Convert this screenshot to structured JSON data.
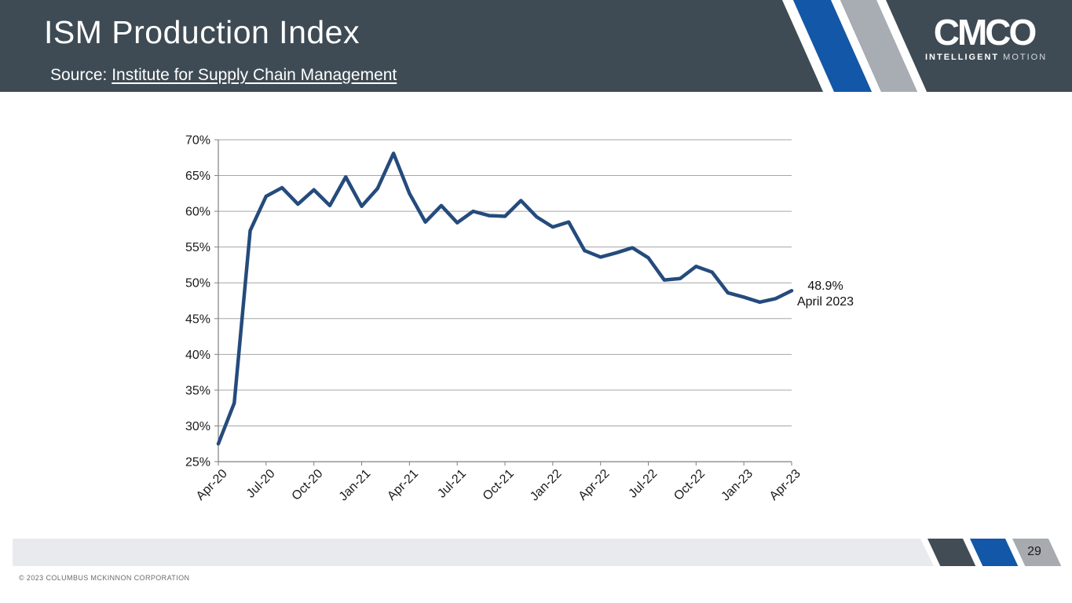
{
  "header": {
    "title": "ISM Production Index",
    "source_prefix": "Source: ",
    "source_link": "Institute for Supply Chain Management"
  },
  "logo": {
    "brand": "CMCO",
    "tagline_bold": "INTELLIGENT",
    "tagline_light": "MOTION"
  },
  "chart_data": {
    "type": "line",
    "title": "",
    "xlabel": "",
    "ylabel": "",
    "x": [
      "Apr-20",
      "May-20",
      "Jun-20",
      "Jul-20",
      "Aug-20",
      "Sep-20",
      "Oct-20",
      "Nov-20",
      "Dec-20",
      "Jan-21",
      "Feb-21",
      "Mar-21",
      "Apr-21",
      "May-21",
      "Jun-21",
      "Jul-21",
      "Aug-21",
      "Sep-21",
      "Oct-21",
      "Nov-21",
      "Dec-21",
      "Jan-22",
      "Feb-22",
      "Mar-22",
      "Apr-22",
      "May-22",
      "Jun-22",
      "Jul-22",
      "Aug-22",
      "Sep-22",
      "Oct-22",
      "Nov-22",
      "Dec-22",
      "Jan-23",
      "Feb-23",
      "Mar-23",
      "Apr-23"
    ],
    "values": [
      27.5,
      33.2,
      57.3,
      62.1,
      63.3,
      61.0,
      63.0,
      60.8,
      64.8,
      60.7,
      63.2,
      68.1,
      62.5,
      58.5,
      60.8,
      58.4,
      60.0,
      59.4,
      59.3,
      61.5,
      59.2,
      57.8,
      58.5,
      54.5,
      53.6,
      54.2,
      54.9,
      53.5,
      50.4,
      50.6,
      52.3,
      51.5,
      48.6,
      48.0,
      47.3,
      47.8,
      48.9
    ],
    "x_tick_labels": [
      "Apr-20",
      "Jul-20",
      "Oct-20",
      "Jan-21",
      "Apr-21",
      "Jul-21",
      "Oct-21",
      "Jan-22",
      "Apr-22",
      "Jul-22",
      "Oct-22",
      "Jan-23",
      "Apr-23"
    ],
    "x_tick_every_n_points": 3,
    "ylim": [
      25,
      70
    ],
    "y_tick_step": 5,
    "y_tick_suffix": "%",
    "grid": true,
    "legend": "none",
    "line_color": "#254b7c",
    "grid_color": "#a6a6a6",
    "axis_color": "#808080",
    "label_color": "#1a1a1a",
    "annotation": {
      "line1": "48.9%",
      "line2": "April 2023"
    }
  },
  "footer": {
    "page_number": "29",
    "copyright": "© 2023 COLUMBUS MCKINNON CORPORATION"
  },
  "colors": {
    "header_bg": "#3e4b54",
    "accent_blue": "#1257a8",
    "accent_gray": "#a7abb0",
    "footer_bar": "#e8eaed",
    "line": "#254b7c"
  }
}
